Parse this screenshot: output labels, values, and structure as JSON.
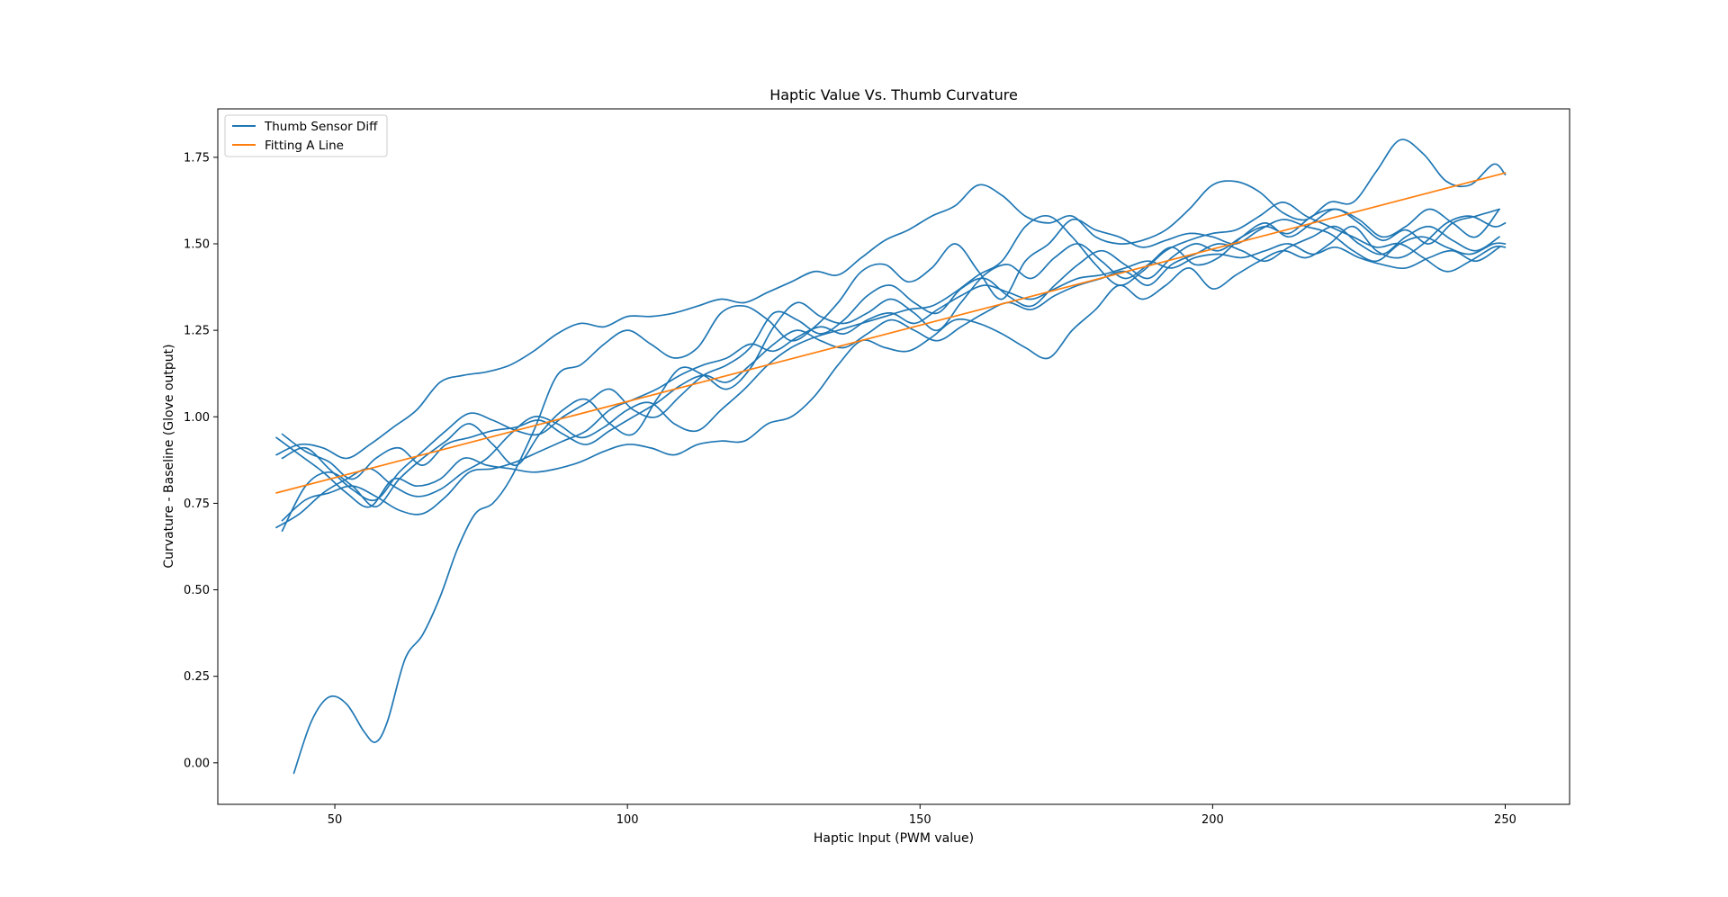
{
  "chart_data": {
    "type": "line",
    "title": "Haptic Value Vs. Thumb Curvature",
    "xlabel": "Haptic Input (PWM value)",
    "ylabel": "Curvature - Baseline (Glove output)",
    "xlim": [
      30,
      261
    ],
    "ylim": [
      -0.12,
      1.89
    ],
    "xticks": [
      50,
      100,
      150,
      200,
      250
    ],
    "xtick_labels": [
      "50",
      "100",
      "150",
      "200",
      "250"
    ],
    "yticks": [
      0.0,
      0.25,
      0.5,
      0.75,
      1.0,
      1.25,
      1.5,
      1.75
    ],
    "ytick_labels": [
      "0.00",
      "0.25",
      "0.50",
      "0.75",
      "1.00",
      "1.25",
      "1.50",
      "1.75"
    ],
    "grid": false,
    "legend_position": "top-left",
    "colors": {
      "sensor": "#1f77b4",
      "fit": "#ff7f0e"
    },
    "legend": [
      {
        "label": "Thumb Sensor Diff",
        "color": "#1f77b4"
      },
      {
        "label": "Fitting A Line",
        "color": "#ff7f0e"
      }
    ],
    "series": [
      {
        "name": "Thumb Sensor Diff",
        "color": "#1f77b4",
        "x": [
          43,
          46,
          49,
          52,
          55,
          57,
          59,
          62,
          65,
          68,
          71,
          74,
          77,
          80,
          84,
          88,
          92,
          96,
          100,
          104,
          108,
          112,
          116,
          120,
          124,
          128,
          132,
          136,
          140,
          144,
          148,
          152,
          156,
          160,
          164,
          168,
          172,
          176,
          180,
          184,
          188,
          192,
          196,
          200,
          204,
          208,
          212,
          216,
          220,
          224,
          228,
          232,
          236,
          240,
          244,
          248,
          250
        ],
        "y": [
          -0.03,
          0.12,
          0.19,
          0.17,
          0.09,
          0.06,
          0.12,
          0.3,
          0.37,
          0.48,
          0.62,
          0.72,
          0.75,
          0.82,
          0.96,
          1.12,
          1.15,
          1.21,
          1.25,
          1.21,
          1.17,
          1.2,
          1.3,
          1.32,
          1.28,
          1.22,
          1.26,
          1.33,
          1.42,
          1.44,
          1.39,
          1.43,
          1.5,
          1.42,
          1.34,
          1.45,
          1.5,
          1.57,
          1.54,
          1.52,
          1.49,
          1.51,
          1.53,
          1.52,
          1.5,
          1.54,
          1.57,
          1.55,
          1.53,
          1.48,
          1.45,
          1.5,
          1.52,
          1.49,
          1.47,
          1.5,
          1.5
        ]
      },
      {
        "name": "",
        "color": "#1f77b4",
        "x": [
          40,
          44,
          48,
          52,
          56,
          60,
          64,
          68,
          72,
          76,
          80,
          84,
          88,
          92,
          96,
          100,
          104,
          108,
          112,
          116,
          120,
          124,
          128,
          132,
          136,
          140,
          144,
          148,
          152,
          156,
          160,
          164,
          168,
          172,
          176,
          180,
          184,
          188,
          192,
          196,
          200,
          204,
          208,
          212,
          216,
          220,
          224,
          228,
          232,
          236,
          240,
          244,
          248,
          250
        ],
        "y": [
          0.89,
          0.92,
          0.91,
          0.88,
          0.92,
          0.97,
          1.02,
          1.1,
          1.12,
          1.13,
          1.15,
          1.19,
          1.24,
          1.27,
          1.26,
          1.29,
          1.29,
          1.3,
          1.32,
          1.34,
          1.33,
          1.36,
          1.39,
          1.42,
          1.41,
          1.46,
          1.51,
          1.54,
          1.58,
          1.61,
          1.67,
          1.64,
          1.58,
          1.56,
          1.58,
          1.52,
          1.5,
          1.51,
          1.54,
          1.6,
          1.67,
          1.68,
          1.65,
          1.59,
          1.57,
          1.62,
          1.62,
          1.71,
          1.8,
          1.76,
          1.68,
          1.67,
          1.73,
          1.7
        ]
      },
      {
        "name": "",
        "color": "#1f77b4",
        "x": [
          40,
          44,
          48,
          52,
          56,
          60,
          64,
          68,
          72,
          76,
          80,
          84,
          88,
          92,
          96,
          100,
          104,
          108,
          112,
          116,
          120,
          124,
          128,
          132,
          136,
          140,
          144,
          148,
          152,
          156,
          160,
          164,
          168,
          172,
          176,
          180,
          184,
          188,
          192,
          196,
          200,
          204,
          208,
          212,
          216,
          220,
          224,
          228,
          232,
          236,
          240,
          244,
          248,
          250
        ],
        "y": [
          0.94,
          0.89,
          0.84,
          0.78,
          0.74,
          0.82,
          0.8,
          0.82,
          0.88,
          0.86,
          0.85,
          0.84,
          0.85,
          0.87,
          0.9,
          0.92,
          0.91,
          0.89,
          0.92,
          0.93,
          0.93,
          0.98,
          1.0,
          1.06,
          1.15,
          1.22,
          1.2,
          1.19,
          1.23,
          1.28,
          1.27,
          1.24,
          1.2,
          1.17,
          1.25,
          1.31,
          1.38,
          1.34,
          1.38,
          1.43,
          1.37,
          1.41,
          1.45,
          1.48,
          1.46,
          1.5,
          1.55,
          1.48,
          1.46,
          1.5,
          1.56,
          1.58,
          1.55,
          1.56
        ]
      },
      {
        "name": "",
        "color": "#1f77b4",
        "x": [
          41,
          45,
          49,
          53,
          57,
          61,
          65,
          69,
          73,
          77,
          81,
          85,
          89,
          93,
          97,
          101,
          105,
          109,
          113,
          117,
          121,
          125,
          129,
          133,
          137,
          141,
          145,
          149,
          153,
          157,
          161,
          165,
          169,
          173,
          177,
          181,
          185,
          189,
          193,
          197,
          201,
          205,
          209,
          213,
          217,
          221,
          225,
          229,
          233,
          237,
          241,
          245,
          249
        ],
        "y": [
          0.7,
          0.76,
          0.78,
          0.8,
          0.77,
          0.73,
          0.72,
          0.77,
          0.84,
          0.85,
          0.87,
          0.9,
          0.93,
          0.96,
          1.02,
          1.05,
          1.08,
          1.12,
          1.15,
          1.17,
          1.21,
          1.19,
          1.23,
          1.26,
          1.24,
          1.28,
          1.3,
          1.27,
          1.31,
          1.35,
          1.38,
          1.36,
          1.34,
          1.37,
          1.4,
          1.41,
          1.43,
          1.45,
          1.43,
          1.46,
          1.47,
          1.46,
          1.48,
          1.5,
          1.47,
          1.49,
          1.46,
          1.44,
          1.43,
          1.46,
          1.48,
          1.45,
          1.49
        ]
      },
      {
        "name": "",
        "color": "#1f77b4",
        "x": [
          41,
          45,
          49,
          53,
          57,
          61,
          65,
          69,
          73,
          77,
          81,
          85,
          89,
          93,
          97,
          101,
          105,
          109,
          113,
          117,
          121,
          125,
          129,
          133,
          137,
          141,
          145,
          149,
          153,
          157,
          161,
          165,
          169,
          173,
          177,
          181,
          185,
          189,
          193,
          197,
          201,
          205,
          209,
          213,
          217,
          221,
          225,
          229,
          233,
          237,
          241,
          245,
          249
        ],
        "y": [
          0.88,
          0.91,
          0.85,
          0.79,
          0.76,
          0.84,
          0.9,
          0.96,
          1.01,
          0.99,
          0.96,
          0.95,
          1.0,
          1.04,
          1.08,
          1.02,
          1.0,
          1.06,
          1.12,
          1.15,
          1.2,
          1.3,
          1.28,
          1.24,
          1.28,
          1.35,
          1.38,
          1.33,
          1.3,
          1.37,
          1.4,
          1.35,
          1.32,
          1.38,
          1.44,
          1.48,
          1.44,
          1.4,
          1.46,
          1.5,
          1.48,
          1.52,
          1.55,
          1.53,
          1.58,
          1.6,
          1.57,
          1.52,
          1.55,
          1.6,
          1.56,
          1.52,
          1.6
        ]
      },
      {
        "name": "",
        "color": "#1f77b4",
        "x": [
          41,
          45,
          49,
          53,
          57,
          61,
          65,
          69,
          73,
          77,
          81,
          85,
          89,
          93,
          97,
          101,
          105,
          109,
          113,
          117,
          121,
          125,
          129,
          133,
          137,
          141,
          145,
          149,
          153,
          157,
          161,
          165,
          169,
          173,
          177,
          181,
          185,
          189,
          193,
          197,
          201,
          205,
          209,
          213,
          217,
          221,
          225,
          229,
          233,
          237,
          241,
          245,
          249
        ],
        "y": [
          0.67,
          0.8,
          0.84,
          0.8,
          0.74,
          0.82,
          0.88,
          0.93,
          0.98,
          0.92,
          0.86,
          0.95,
          1.02,
          1.05,
          0.98,
          0.95,
          1.05,
          1.14,
          1.12,
          1.08,
          1.14,
          1.26,
          1.33,
          1.29,
          1.27,
          1.3,
          1.34,
          1.3,
          1.25,
          1.33,
          1.41,
          1.44,
          1.4,
          1.46,
          1.5,
          1.45,
          1.4,
          1.44,
          1.49,
          1.44,
          1.46,
          1.52,
          1.56,
          1.52,
          1.56,
          1.6,
          1.56,
          1.51,
          1.54,
          1.5,
          1.56,
          1.58,
          1.6
        ]
      },
      {
        "name": "",
        "color": "#1f77b4",
        "x": [
          40,
          44,
          48,
          52,
          56,
          60,
          64,
          68,
          72,
          76,
          80,
          84,
          88,
          92,
          96,
          100,
          104,
          108,
          112,
          116,
          120,
          124,
          128,
          132,
          136,
          140,
          144,
          148,
          152,
          156,
          160,
          164,
          168,
          172,
          176,
          180,
          184,
          188,
          192,
          196,
          200,
          204,
          208,
          212,
          216,
          220,
          224,
          228,
          232,
          236,
          240,
          244,
          248,
          250
        ],
        "y": [
          0.68,
          0.72,
          0.78,
          0.82,
          0.85,
          0.8,
          0.77,
          0.79,
          0.84,
          0.88,
          0.95,
          1.0,
          0.98,
          0.94,
          0.97,
          1.02,
          1.04,
          0.98,
          0.96,
          1.02,
          1.08,
          1.15,
          1.2,
          1.23,
          1.25,
          1.27,
          1.29,
          1.31,
          1.32,
          1.36,
          1.41,
          1.45,
          1.55,
          1.58,
          1.52,
          1.44,
          1.38,
          1.42,
          1.48,
          1.51,
          1.53,
          1.54,
          1.58,
          1.62,
          1.58,
          1.55,
          1.52,
          1.49,
          1.5,
          1.46,
          1.42,
          1.45,
          1.49,
          1.49
        ]
      },
      {
        "name": "",
        "color": "#1f77b4",
        "x": [
          41,
          45,
          49,
          53,
          57,
          61,
          65,
          69,
          73,
          77,
          81,
          85,
          89,
          93,
          97,
          101,
          105,
          109,
          113,
          117,
          121,
          125,
          129,
          133,
          137,
          141,
          145,
          149,
          153,
          157,
          161,
          165,
          169,
          173,
          177,
          181,
          185,
          189,
          193,
          197,
          201,
          205,
          209,
          213,
          217,
          221,
          225,
          229,
          233,
          237,
          241,
          245,
          249
        ],
        "y": [
          0.95,
          0.9,
          0.87,
          0.82,
          0.88,
          0.91,
          0.86,
          0.92,
          0.94,
          0.96,
          0.97,
          0.99,
          0.95,
          0.92,
          0.96,
          1.0,
          1.04,
          1.09,
          1.12,
          1.1,
          1.15,
          1.21,
          1.25,
          1.22,
          1.2,
          1.24,
          1.28,
          1.25,
          1.22,
          1.26,
          1.3,
          1.33,
          1.31,
          1.35,
          1.38,
          1.4,
          1.42,
          1.38,
          1.44,
          1.47,
          1.5,
          1.48,
          1.45,
          1.49,
          1.52,
          1.55,
          1.5,
          1.47,
          1.52,
          1.55,
          1.51,
          1.48,
          1.52
        ]
      },
      {
        "name": "Fitting A Line",
        "color": "#ff7f0e",
        "x": [
          40,
          250
        ],
        "y": [
          0.78,
          1.705
        ]
      }
    ]
  }
}
